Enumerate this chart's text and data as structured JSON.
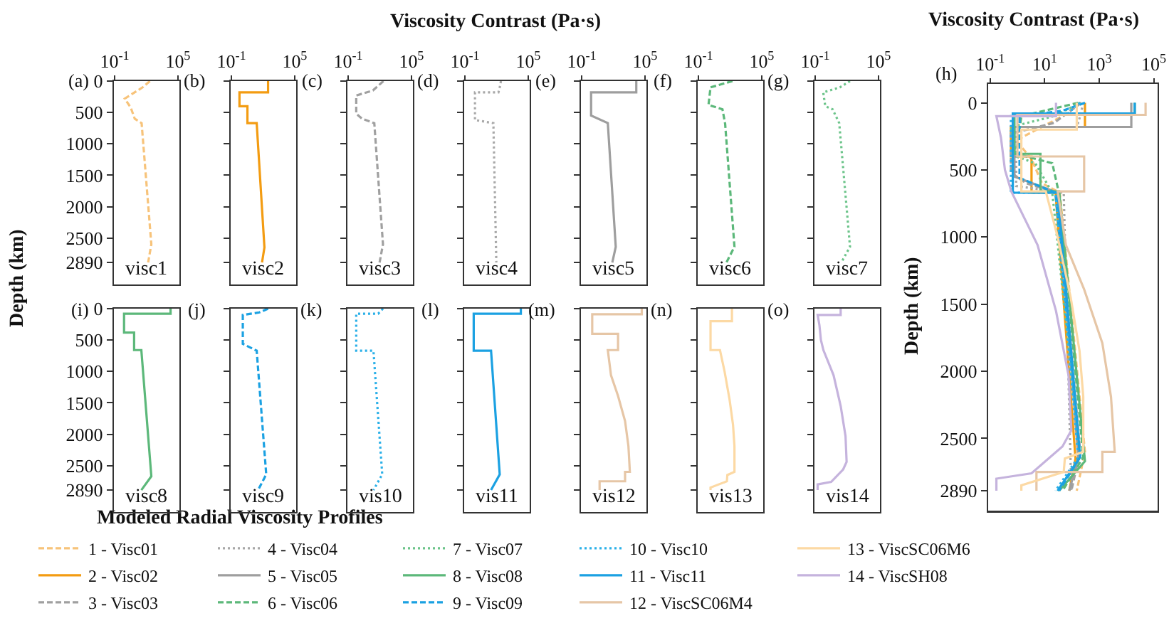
{
  "chart_data": [
    {
      "type": "line",
      "log": "x",
      "xlim": [
        0.085,
        138000
      ],
      "xticks": [
        {
          "value": 0.1,
          "label": "10$^{-1}$"
        },
        {
          "value": 100000,
          "label": "10$^{5}$"
        }
      ],
      "ylim": [
        3240,
        0
      ],
      "yticks": [
        0,
        500,
        1000,
        1500,
        2000,
        2500,
        2890
      ],
      "ylabel": "Depth (km)",
      "annotations": [
        "(a)",
        "visc1"
      ],
      "series": [
        {
          "color": "#f7c37a",
          "line_style": "dashed",
          "x": [
            220,
            45,
            0.9,
            3.3,
            8,
            36,
            300,
            150
          ],
          "values": [
            0,
            100,
            280,
            420,
            600,
            670,
            2600,
            2890
          ]
        }
      ]
    },
    {
      "type": "line",
      "log": "x",
      "xlim": [
        0.085,
        138000
      ],
      "xticks": [
        {
          "value": 0.1,
          "label": "10$^{-1}$"
        },
        {
          "value": 100000,
          "label": "10$^{5}$"
        }
      ],
      "ylim": [
        3240,
        0
      ],
      "yticks": [
        0,
        500,
        1000,
        1500,
        2000,
        2500,
        2890
      ],
      "tick_labels": "x",
      "annotations": [
        "(b)",
        "visc2"
      ],
      "series": [
        {
          "color": "#f39c12",
          "line_style": "solid",
          "x": [
            300,
            300,
            0.58,
            0.58,
            3.3,
            3.3,
            25,
            135,
            80
          ],
          "values": [
            0,
            180,
            180,
            400,
            400,
            670,
            670,
            2650,
            2890
          ]
        }
      ]
    },
    {
      "type": "line",
      "log": "x",
      "xlim": [
        0.085,
        138000
      ],
      "xticks": [
        {
          "value": 0.1,
          "label": "10$^{-1}$"
        },
        {
          "value": 100000,
          "label": "10$^{5}$"
        }
      ],
      "ylim": [
        3240,
        0
      ],
      "yticks": [
        0,
        500,
        1000,
        1500,
        2000,
        2500,
        2890
      ],
      "tick_labels": "x",
      "annotations": [
        "(c)",
        "visc3"
      ],
      "series": [
        {
          "color": "#a0a0a0",
          "line_style": "dashed",
          "x": [
            220,
            22,
            0.58,
            0.58,
            2.1,
            30,
            200,
            95
          ],
          "values": [
            0,
            150,
            230,
            520,
            600,
            670,
            2600,
            2890
          ]
        }
      ]
    },
    {
      "type": "line",
      "log": "x",
      "xlim": [
        0.085,
        138000
      ],
      "xticks": [
        {
          "value": 0.1,
          "label": "10$^{-1}$"
        },
        {
          "value": 100000,
          "label": "10$^{5}$"
        }
      ],
      "ylim": [
        3240,
        0
      ],
      "yticks": [
        0,
        500,
        1000,
        1500,
        2000,
        2500,
        2890
      ],
      "tick_labels": "x",
      "xlabel": "Viscosity Contrast (Pa·s)",
      "annotations": [
        "(d)",
        "visc4"
      ],
      "series": [
        {
          "color": "#a8a8a8",
          "line_style": "dotted",
          "x": [
            260,
            200,
            150,
            0.9,
            0.9,
            50,
            95
          ],
          "values": [
            0,
            100,
            180,
            180,
            620,
            670,
            2890
          ]
        }
      ]
    },
    {
      "type": "line",
      "log": "x",
      "xlim": [
        0.085,
        138000
      ],
      "xticks": [
        {
          "value": 0.1,
          "label": "10$^{-1}$"
        },
        {
          "value": 100000,
          "label": "10$^{5}$"
        }
      ],
      "ylim": [
        3240,
        0
      ],
      "yticks": [
        0,
        500,
        1000,
        1500,
        2000,
        2500,
        2890
      ],
      "tick_labels": "x",
      "annotations": [
        "(e)",
        "visc5"
      ],
      "series": [
        {
          "color": "#9e9e9e",
          "line_style": "solid",
          "x": [
            15000,
            15000,
            0.78,
            0.78,
            30,
            170,
            80
          ],
          "values": [
            0,
            180,
            180,
            550,
            670,
            2640,
            2890
          ]
        }
      ]
    },
    {
      "type": "line",
      "log": "x",
      "xlim": [
        0.085,
        138000
      ],
      "xticks": [
        {
          "value": 0.1,
          "label": "10$^{-1}$"
        },
        {
          "value": 100000,
          "label": "10$^{5}$"
        }
      ],
      "ylim": [
        3240,
        0
      ],
      "yticks": [
        0,
        500,
        1000,
        1500,
        2000,
        2500,
        2890
      ],
      "tick_labels": "x",
      "annotations": [
        "(f)",
        "visc6"
      ],
      "series": [
        {
          "color": "#5cb87a",
          "line_style": "dashed",
          "x": [
            170,
            1.4,
            0.9,
            19,
            34,
            260,
            45
          ],
          "values": [
            0,
            100,
            380,
            450,
            680,
            2640,
            2890
          ]
        }
      ]
    },
    {
      "type": "line",
      "log": "x",
      "xlim": [
        0.085,
        138000
      ],
      "xticks": [
        {
          "value": 0.1,
          "label": "10$^{-1}$"
        },
        {
          "value": 100000,
          "label": "10$^{5}$"
        }
      ],
      "ylim": [
        3240,
        0
      ],
      "yticks": [
        0,
        500,
        1000,
        1500,
        2000,
        2500,
        2890
      ],
      "tick_labels": "x",
      "annotations": [
        "(g)",
        "visc7"
      ],
      "series": [
        {
          "color": "#6cc48a",
          "line_style": "dotted",
          "x": [
            200,
            22,
            0.58,
            0.9,
            4.5,
            19,
            200,
            30
          ],
          "values": [
            0,
            100,
            180,
            400,
            450,
            670,
            2640,
            2890
          ]
        }
      ]
    },
    {
      "type": "line",
      "log": "x",
      "xlim": [
        0.085,
        138000
      ],
      "xticks": [
        {
          "value": 0.1,
          "label": "10$^{-1}$"
        },
        {
          "value": 10,
          "label": "10$^{1}$"
        },
        {
          "value": 1000,
          "label": "10$^{3}$"
        },
        {
          "value": 100000,
          "label": "10$^{5}$"
        }
      ],
      "ylim": [
        3040,
        -140
      ],
      "yticks": [
        0,
        500,
        1000,
        1500,
        2000,
        2500,
        2890
      ],
      "xlabel": "Viscosity Contrast (Pa·s)",
      "ylabel": "Depth (km)",
      "legend": "bottom",
      "legend_title": "Modeled Radial Viscosity Profiles",
      "annotations": [
        "(h)"
      ],
      "series": [
        {
          "name": "1 - Visc01",
          "color": "#f7c37a",
          "line_style": "dashed",
          "x": [
            220,
            45,
            0.9,
            3.3,
            8,
            36,
            300,
            150
          ],
          "values": [
            0,
            100,
            280,
            420,
            600,
            670,
            2600,
            2890
          ]
        },
        {
          "name": "2 - Visc02",
          "color": "#f39c12",
          "line_style": "solid",
          "x": [
            300,
            300,
            0.58,
            0.58,
            3.3,
            3.3,
            25,
            135,
            80
          ],
          "values": [
            0,
            180,
            180,
            400,
            400,
            670,
            670,
            2650,
            2890
          ]
        },
        {
          "name": "3 - Visc03",
          "color": "#a0a0a0",
          "line_style": "dashed",
          "x": [
            220,
            22,
            0.58,
            0.58,
            2.1,
            30,
            200,
            95
          ],
          "values": [
            0,
            150,
            230,
            520,
            600,
            670,
            2600,
            2890
          ]
        },
        {
          "name": "4 - Visc04",
          "color": "#a8a8a8",
          "line_style": "dotted",
          "x": [
            260,
            200,
            150,
            0.9,
            0.9,
            50,
            95
          ],
          "values": [
            0,
            100,
            180,
            180,
            620,
            670,
            2890
          ]
        },
        {
          "name": "5 - Visc05",
          "color": "#9e9e9e",
          "line_style": "solid",
          "x": [
            15000,
            15000,
            0.78,
            0.78,
            30,
            170,
            80
          ],
          "values": [
            0,
            180,
            180,
            550,
            670,
            2640,
            2890
          ]
        },
        {
          "name": "6 - Visc06",
          "color": "#5cb87a",
          "line_style": "dashed",
          "x": [
            170,
            1.4,
            0.9,
            19,
            34,
            260,
            45
          ],
          "values": [
            0,
            100,
            380,
            450,
            680,
            2640,
            2890
          ]
        },
        {
          "name": "7 - Visc07",
          "color": "#6cc48a",
          "line_style": "dotted",
          "x": [
            200,
            22,
            0.58,
            0.9,
            4.5,
            19,
            200,
            30
          ],
          "values": [
            0,
            100,
            180,
            400,
            450,
            670,
            2640,
            2890
          ]
        },
        {
          "name": "8 - Visc08",
          "color": "#5cb87a",
          "line_style": "solid",
          "x": [
            20000,
            20000,
            0.78,
            0.78,
            7,
            7,
            34,
            300,
            34
          ],
          "values": [
            0,
            80,
            80,
            380,
            380,
            660,
            660,
            2670,
            2890
          ]
        },
        {
          "name": "9 - Visc09",
          "color": "#1ba1e2",
          "line_style": "dashed",
          "x": [
            300,
            45,
            1.2,
            1.2,
            25,
            200,
            34
          ],
          "values": [
            0,
            60,
            100,
            560,
            670,
            2640,
            2890
          ]
        },
        {
          "name": "10 - Visc10",
          "color": "#2bb0e8",
          "line_style": "dotted",
          "x": [
            200,
            70,
            0.58,
            0.58,
            25,
            170,
            25
          ],
          "values": [
            0,
            80,
            80,
            670,
            670,
            2640,
            2890
          ]
        },
        {
          "name": "11 - Visc11",
          "color": "#1ba1e2",
          "line_style": "solid",
          "x": [
            20000,
            20000,
            0.68,
            0.68,
            30,
            200,
            30
          ],
          "values": [
            0,
            80,
            80,
            670,
            670,
            2640,
            2890
          ]
        },
        {
          "name": "12 - ViscSC06M4",
          "color": "#e6c6a6",
          "line_style": "solid",
          "x": [
            50000,
            50000,
            1,
            1,
            280,
            280,
            30,
            60,
            280,
            1300,
            2700,
            3700,
            1300,
            1300,
            5,
            5
          ],
          "values": [
            0,
            90,
            90,
            400,
            400,
            660,
            660,
            1060,
            1390,
            1790,
            2190,
            2600,
            2600,
            2750,
            2750,
            2890
          ]
        },
        {
          "name": "13 - ViscSC06M6",
          "color": "#fcd9a4",
          "line_style": "solid",
          "x": [
            150,
            150,
            1.4,
            1.4,
            11,
            30,
            90,
            190,
            260,
            260,
            55,
            50,
            1.4,
            1.4
          ],
          "values": [
            0,
            200,
            200,
            660,
            660,
            1000,
            1450,
            1850,
            2190,
            2600,
            2650,
            2750,
            2850,
            2890
          ]
        },
        {
          "name": "14 - ViscSH08",
          "color": "#c5b3dd",
          "line_style": "solid",
          "x": [
            26,
            26,
            0.17,
            0.25,
            0.35,
            0.6,
            5.5,
            26,
            75,
            95,
            45,
            3.3,
            0.17,
            0.17
          ],
          "values": [
            0,
            100,
            100,
            260,
            500,
            660,
            1060,
            1550,
            2030,
            2440,
            2560,
            2760,
            2800,
            2890
          ]
        }
      ]
    },
    {
      "type": "line",
      "log": "x",
      "xlim": [
        0.085,
        138000
      ],
      "ylim": [
        3240,
        0
      ],
      "yticks": [
        0,
        500,
        1000,
        1500,
        2000,
        2500,
        2890
      ],
      "tick_labels": "y",
      "annotations": [
        "(i)",
        "visc8"
      ],
      "series": [
        {
          "color": "#5cb87a",
          "line_style": "solid",
          "x": [
            20000,
            20000,
            0.78,
            0.78,
            7,
            7,
            34,
            300,
            34
          ],
          "values": [
            0,
            80,
            80,
            380,
            380,
            660,
            660,
            2670,
            2890
          ]
        }
      ]
    },
    {
      "type": "line",
      "log": "x",
      "xlim": [
        0.085,
        138000
      ],
      "ylim": [
        3240,
        0
      ],
      "yticks": [
        0,
        500,
        1000,
        1500,
        2000,
        2500,
        2890
      ],
      "tick_labels": false,
      "annotations": [
        "(j)",
        "visc9"
      ],
      "series": [
        {
          "color": "#1ba1e2",
          "line_style": "dashed",
          "x": [
            300,
            45,
            1.2,
            1.2,
            25,
            200,
            34
          ],
          "values": [
            0,
            60,
            100,
            560,
            670,
            2640,
            2890
          ]
        }
      ]
    },
    {
      "type": "line",
      "log": "x",
      "xlim": [
        0.085,
        138000
      ],
      "ylim": [
        3240,
        0
      ],
      "yticks": [
        0,
        500,
        1000,
        1500,
        2000,
        2500,
        2890
      ],
      "tick_labels": false,
      "annotations": [
        "(k)",
        "vis10"
      ],
      "series": [
        {
          "color": "#2bb0e8",
          "line_style": "dotted",
          "x": [
            200,
            70,
            0.58,
            0.58,
            25,
            170,
            25
          ],
          "values": [
            0,
            80,
            80,
            670,
            670,
            2640,
            2890
          ]
        }
      ]
    },
    {
      "type": "line",
      "log": "x",
      "xlim": [
        0.085,
        138000
      ],
      "ylim": [
        3240,
        0
      ],
      "yticks": [
        0,
        500,
        1000,
        1500,
        2000,
        2500,
        2890
      ],
      "tick_labels": false,
      "annotations": [
        "(l)",
        "vis11"
      ],
      "series": [
        {
          "color": "#1ba1e2",
          "line_style": "solid",
          "x": [
            20000,
            20000,
            0.68,
            0.68,
            30,
            200,
            30
          ],
          "values": [
            0,
            80,
            80,
            670,
            670,
            2640,
            2890
          ]
        }
      ]
    },
    {
      "type": "line",
      "log": "x",
      "xlim": [
        0.085,
        138000
      ],
      "ylim": [
        3240,
        0
      ],
      "yticks": [
        0,
        500,
        1000,
        1500,
        2000,
        2500,
        2890
      ],
      "tick_labels": false,
      "annotations": [
        "(m)",
        "vis12"
      ],
      "series": [
        {
          "color": "#e6c6a6",
          "line_style": "solid",
          "x": [
            50000,
            50000,
            1,
            1,
            280,
            280,
            30,
            60,
            280,
            1300,
            2700,
            3700,
            1300,
            1300,
            5,
            5
          ],
          "values": [
            0,
            90,
            90,
            400,
            400,
            660,
            660,
            1060,
            1390,
            1790,
            2190,
            2600,
            2600,
            2750,
            2750,
            2890
          ]
        }
      ]
    },
    {
      "type": "line",
      "log": "x",
      "xlim": [
        0.085,
        138000
      ],
      "ylim": [
        3240,
        0
      ],
      "yticks": [
        0,
        500,
        1000,
        1500,
        2000,
        2500,
        2890
      ],
      "tick_labels": false,
      "annotations": [
        "(n)",
        "vis13"
      ],
      "series": [
        {
          "color": "#fcd9a4",
          "line_style": "solid",
          "x": [
            150,
            150,
            1.4,
            1.4,
            11,
            30,
            90,
            190,
            260,
            260,
            55,
            50,
            1.4,
            1.4
          ],
          "values": [
            0,
            200,
            200,
            660,
            660,
            1000,
            1450,
            1850,
            2190,
            2600,
            2650,
            2750,
            2850,
            2890
          ]
        }
      ]
    },
    {
      "type": "line",
      "log": "x",
      "xlim": [
        0.085,
        138000
      ],
      "ylim": [
        3240,
        0
      ],
      "yticks": [
        0,
        500,
        1000,
        1500,
        2000,
        2500,
        2890
      ],
      "tick_labels": false,
      "annotations": [
        "(o)",
        "vis14"
      ],
      "series": [
        {
          "color": "#c5b3dd",
          "line_style": "solid",
          "x": [
            26,
            26,
            0.17,
            0.25,
            0.35,
            0.6,
            5.5,
            26,
            75,
            95,
            45,
            3.3,
            0.17,
            0.17
          ],
          "values": [
            0,
            100,
            100,
            260,
            500,
            660,
            1060,
            1550,
            2030,
            2440,
            2560,
            2760,
            2800,
            2890
          ]
        }
      ]
    }
  ]
}
